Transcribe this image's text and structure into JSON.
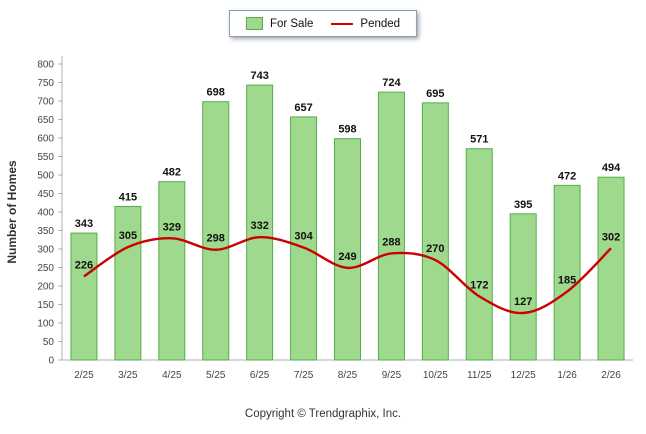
{
  "footer": {
    "copyright": "Copyright © Trendgraphix, Inc."
  },
  "colors": {
    "bar_fill": "#9ed98d",
    "bar_stroke": "#55ae4b",
    "line": "#cc0000",
    "axis": "#b0b0b0",
    "tick_text": "#444444",
    "value_text": "#111111"
  },
  "chart_data": {
    "type": "bar",
    "categories": [
      "2/25",
      "3/25",
      "4/25",
      "5/25",
      "6/25",
      "7/25",
      "8/25",
      "9/25",
      "10/25",
      "11/25",
      "12/25",
      "1/26",
      "2/26"
    ],
    "series": [
      {
        "name": "For Sale",
        "type": "bar",
        "values": [
          343,
          415,
          482,
          698,
          743,
          657,
          598,
          724,
          695,
          571,
          395,
          472,
          494
        ]
      },
      {
        "name": "Pended",
        "type": "line",
        "values": [
          226,
          305,
          329,
          298,
          332,
          304,
          249,
          288,
          270,
          172,
          127,
          185,
          302
        ]
      }
    ],
    "title": "",
    "xlabel": "",
    "ylabel": "Number of Homes",
    "ylim": [
      0,
      800
    ],
    "ytick_step": 50,
    "grid": false,
    "legend_position": "top"
  }
}
